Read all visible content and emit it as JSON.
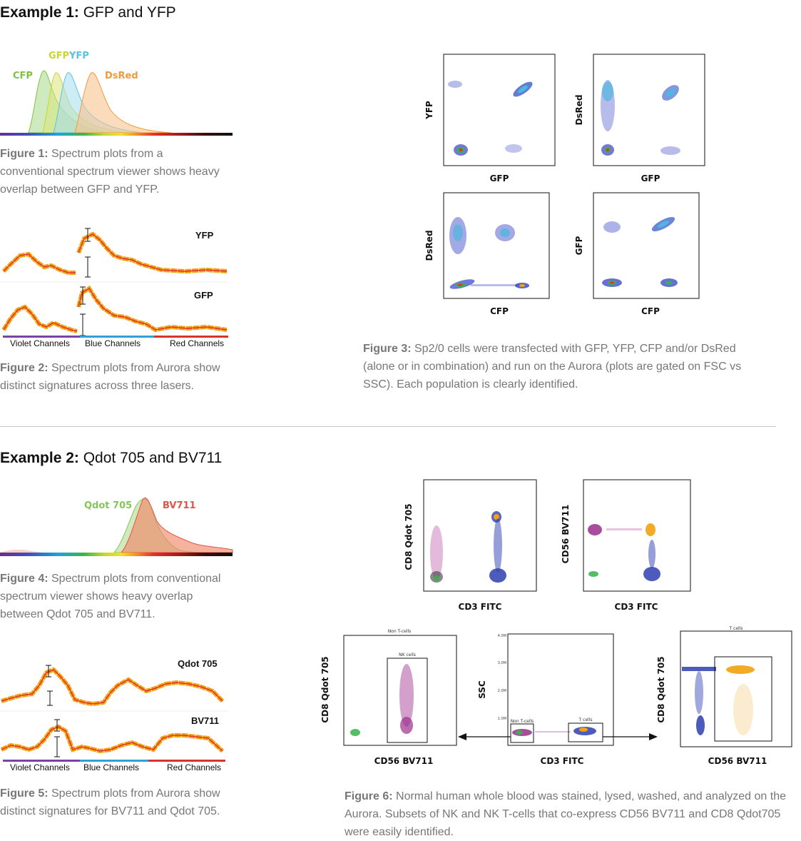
{
  "example1": {
    "heading_bold": "Example 1:",
    "heading_text": " GFP and YFP",
    "fig1": {
      "labels": {
        "cfp": "CFP",
        "gfp": "GFP",
        "yfp": "YFP",
        "dsred": "DsRed"
      },
      "caption_bold": "Figure 1:",
      "caption_text": " Spectrum plots from a conventional spectrum viewer shows heavy overlap between GFP and YFP."
    },
    "fig2": {
      "sig_top": "YFP",
      "sig_bottom": "GFP",
      "channels": [
        "Violet Channels",
        "Blue Channels",
        "Red Channels"
      ],
      "caption_bold": "Figure 2:",
      "caption_text": " Spectrum plots from Aurora show distinct signatures across three lasers."
    },
    "fig3": {
      "plots": [
        {
          "xlabel": "GFP",
          "ylabel": "YFP"
        },
        {
          "xlabel": "GFP",
          "ylabel": "DsRed"
        },
        {
          "xlabel": "CFP",
          "ylabel": "DsRed"
        },
        {
          "xlabel": "CFP",
          "ylabel": "GFP"
        }
      ],
      "caption_bold": "Figure 3:",
      "caption_text": "  Sp2/0 cells were transfected with GFP, YFP, CFP and/or DsRed (alone or in combination) and run on the Aurora (plots are gated on FSC vs SSC).  Each population is clearly identified."
    }
  },
  "example2": {
    "heading_bold": "Example 2:",
    "heading_text": " Qdot 705 and BV711",
    "fig4": {
      "labels": {
        "qdot": "Qdot 705",
        "bv": "BV711"
      },
      "caption_bold": "Figure 4:",
      "caption_text": " Spectrum plots from conventional spectrum viewer shows heavy overlap between Qdot 705 and BV711."
    },
    "fig5": {
      "sig_top": "Qdot 705",
      "sig_bottom": "BV711",
      "channels": [
        "Violet Channels",
        "Blue Channels",
        "Red Channels"
      ],
      "caption_bold": "Figure 5:",
      "caption_text": " Spectrum plots from Aurora show distinct signatures for BV711 and Qdot 705."
    },
    "fig6": {
      "top_plots": [
        {
          "xlabel": "CD3 FITC",
          "ylabel": "CD8 Qdot 705"
        },
        {
          "xlabel": "CD3 FITC",
          "ylabel": "CD56 BV711"
        }
      ],
      "bottom_plots": [
        {
          "xlabel": "CD56 BV711",
          "ylabel": "CD8 Qdot 705",
          "title": "Non T-cells",
          "gate": "NK cells"
        },
        {
          "xlabel": "CD3 FITC",
          "ylabel": "SSC",
          "gate_left": "Non T-cells",
          "gate_right": "T cells",
          "yticks": [
            "4.0M",
            "3.0M",
            "2.0M",
            "1.0M"
          ]
        },
        {
          "xlabel": "CD56 BV711",
          "ylabel": "CD8 Qdot 705",
          "title": "T cells"
        }
      ],
      "caption_bold": "Figure 6:",
      "caption_text": " Normal human whole blood was stained, lysed, washed, and analyzed on the Aurora. Subsets of NK and NK T-cells that co-express CD56 BV711 and CD8 Qdot705 were easily identified."
    }
  },
  "colors": {
    "cfp": "#7fc241",
    "gfp": "#c9d630",
    "yfp": "#58c4e0",
    "dsred": "#f09a3e",
    "qdot": "#86c45a",
    "bv": "#e2534a",
    "caption": "#777777"
  }
}
